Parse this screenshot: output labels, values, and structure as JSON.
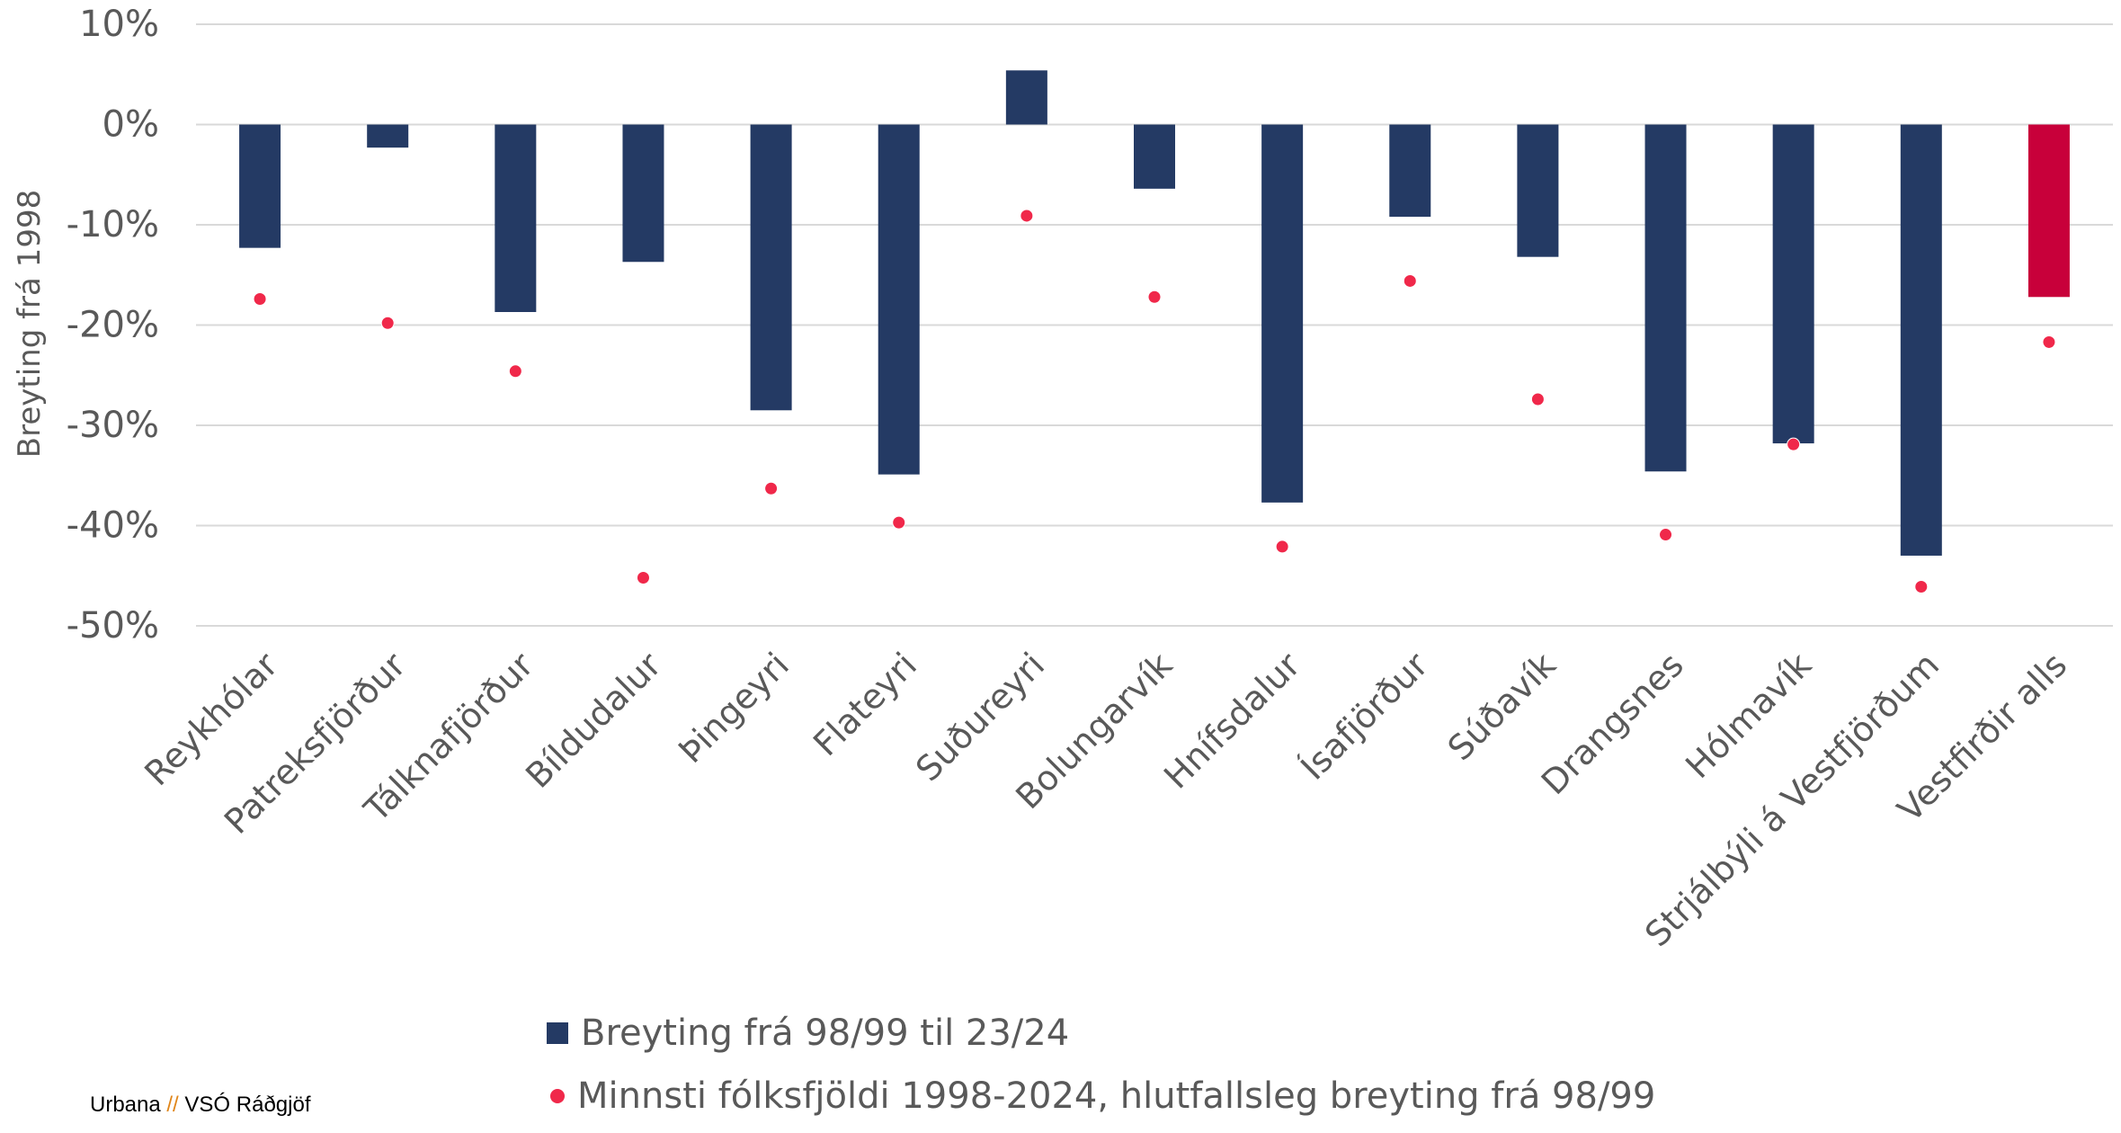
{
  "chart_data": {
    "type": "bar",
    "ylabel": "Breyting frá 1998",
    "xlabel": "",
    "ylim": [
      -0.5,
      0.1
    ],
    "yticks": [
      0.1,
      0,
      -0.1,
      -0.2,
      -0.3,
      -0.4,
      -0.5
    ],
    "ytick_labels": [
      "10%",
      "0%",
      "-10%",
      "-20%",
      "-30%",
      "-40%",
      "-50%"
    ],
    "grid": true,
    "categories": [
      "Reykhólar",
      "Patreksfjörður",
      "Tálknafjörður",
      "Bíldudalur",
      "Þingeyri",
      "Flateyri",
      "Suðureyri",
      "Bolungarvík",
      "Hnífsdalur",
      "Ísafjörður",
      "Súðavík",
      "Drangsnes",
      "Hólmavík",
      "Strjálbýli á Vestfjörðum",
      "Vestfirðir alls"
    ],
    "series": [
      {
        "name": "Breyting frá 98/99 til 23/24",
        "type": "bar",
        "color": "#243a64",
        "highlight_color": "#c8003a",
        "highlight_index": 14,
        "values": [
          -0.123,
          -0.023,
          -0.187,
          -0.137,
          -0.285,
          -0.349,
          0.054,
          -0.064,
          -0.377,
          -0.092,
          -0.132,
          -0.346,
          -0.318,
          -0.43,
          -0.172
        ]
      },
      {
        "name": "Minnsti fólksfjöldi 1998-2024, hlutfallsleg breyting frá 98/99",
        "type": "scatter",
        "color": "#f0284a",
        "values": [
          -0.174,
          -0.198,
          -0.246,
          -0.452,
          -0.363,
          -0.397,
          -0.091,
          -0.172,
          -0.421,
          -0.156,
          -0.274,
          -0.409,
          -0.319,
          -0.461,
          -0.217
        ]
      }
    ],
    "legend_position": "bottom"
  },
  "footer": {
    "left": "Urbana",
    "separator": "//",
    "right": "VSÓ Ráðgjöf"
  }
}
